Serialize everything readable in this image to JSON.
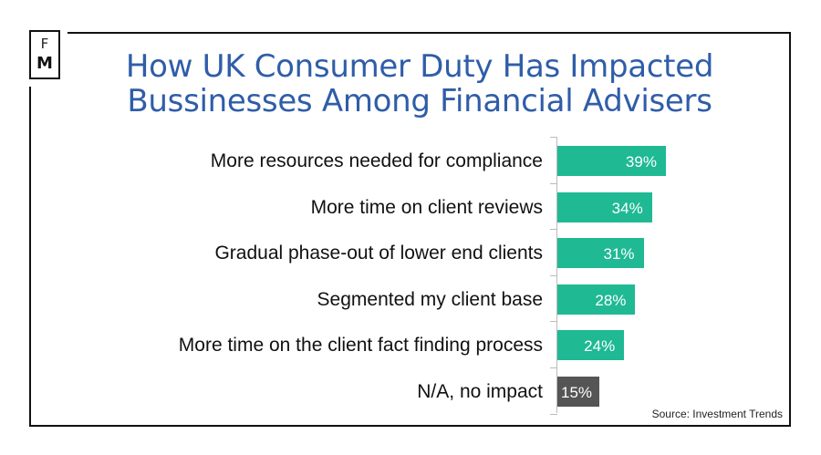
{
  "logo": {
    "line1": "F",
    "line2": "M"
  },
  "chart_data": {
    "type": "bar",
    "orientation": "horizontal",
    "title": "How UK Consumer Duty Has Impacted Bussinesses Among Financial Advisers",
    "categories": [
      "More resources needed for compliance",
      "More time on client reviews",
      "Gradual phase-out of lower end clients",
      "Segmented my client base",
      "More time on the client fact finding process",
      "N/A, no impact"
    ],
    "values": [
      39,
      34,
      31,
      28,
      24,
      15
    ],
    "value_labels": [
      "39%",
      "34%",
      "31%",
      "28%",
      "24%",
      "15%"
    ],
    "colors": [
      "#1fb994",
      "#1fb994",
      "#1fb994",
      "#1fb994",
      "#1fb994",
      "#555555"
    ],
    "xlim": [
      0,
      100
    ],
    "source": "Source: Investment Trends"
  }
}
